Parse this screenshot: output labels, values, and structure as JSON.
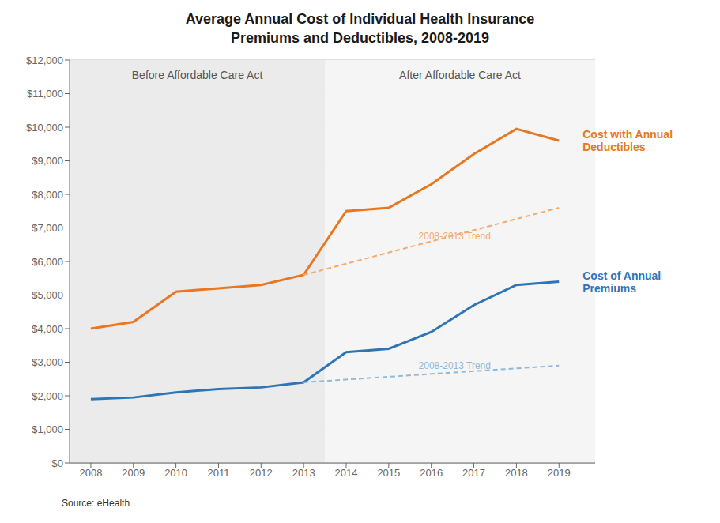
{
  "chart_data": {
    "type": "line",
    "title": "Average Annual Cost of Individual Health Insurance\nPremiums and Deductibles, 2008-2019",
    "source": "Source: eHealth",
    "x": [
      2008,
      2009,
      2010,
      2011,
      2012,
      2013,
      2014,
      2015,
      2016,
      2017,
      2018,
      2019
    ],
    "series": [
      {
        "name": "Cost with Annual\nDeductibles",
        "color": "#E87722",
        "line_style": "solid",
        "values": [
          4000,
          4200,
          5100,
          5200,
          5300,
          5600,
          7500,
          7600,
          8300,
          9200,
          9950,
          9600
        ]
      },
      {
        "name": "Cost of Annual\nPremiums",
        "color": "#2E75B6",
        "line_style": "solid",
        "values": [
          1900,
          1950,
          2100,
          2200,
          2250,
          2400,
          3300,
          3400,
          3900,
          4700,
          5300,
          5400
        ]
      },
      {
        "name": "2008-2013 Trend",
        "color": "#F4A96D",
        "line_style": "dashed",
        "x": [
          2013,
          2019
        ],
        "values": [
          5600,
          7600
        ]
      },
      {
        "name": "2008-2013 Trend",
        "color": "#92B8D8",
        "line_style": "dashed",
        "x": [
          2013,
          2019
        ],
        "values": [
          2400,
          2900
        ]
      }
    ],
    "spans": [
      {
        "x0": 2007.5,
        "x1": 2013.5,
        "label": "Before Affordable Care Act",
        "color": "#EBEBEB"
      },
      {
        "x0": 2013.5,
        "x1": 2019.85,
        "label": "After Affordable Care Act",
        "color": "#F5F5F5"
      }
    ],
    "xlim": [
      2007.5,
      2019.85
    ],
    "xticks": [
      2008,
      2009,
      2010,
      2011,
      2012,
      2013,
      2014,
      2015,
      2016,
      2017,
      2018,
      2019
    ],
    "ylim": [
      0,
      12000
    ],
    "yticks": [
      {
        "value": 0,
        "label": "$0"
      },
      {
        "value": 1000,
        "label": "$1,000"
      },
      {
        "value": 2000,
        "label": "$2,000"
      },
      {
        "value": 3000,
        "label": "$3,000"
      },
      {
        "value": 4000,
        "label": "$4,000"
      },
      {
        "value": 5000,
        "label": "$5,000"
      },
      {
        "value": 6000,
        "label": "$6,000"
      },
      {
        "value": 7000,
        "label": "$7,000"
      },
      {
        "value": 8000,
        "label": "$8,000"
      },
      {
        "value": 9000,
        "label": "$9,000"
      },
      {
        "value": 10000,
        "label": "$10,000"
      },
      {
        "value": 11000,
        "label": "$11,000"
      },
      {
        "value": 12000,
        "label": "$12,000"
      }
    ],
    "grid": true
  }
}
